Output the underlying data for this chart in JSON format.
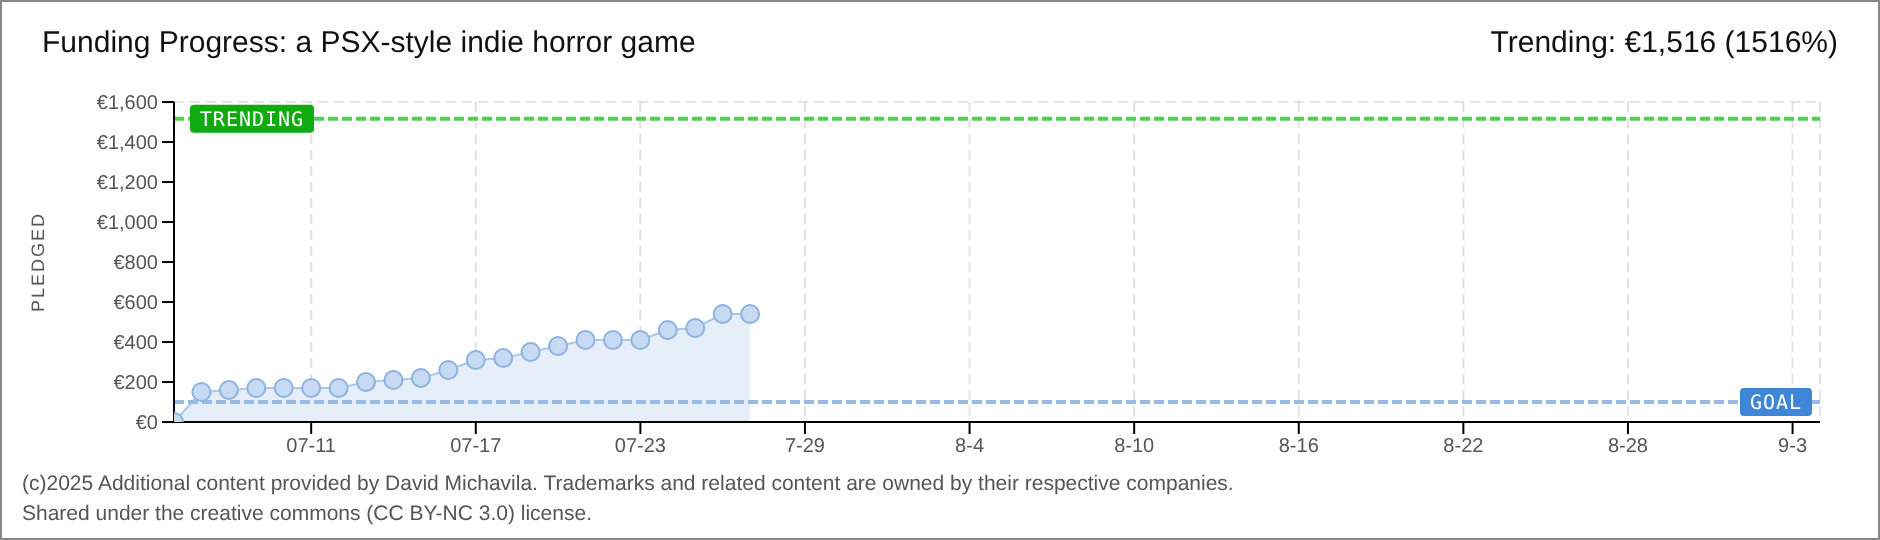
{
  "chart_data": {
    "type": "area",
    "title": "Funding Progress: a PSX-style indie horror game",
    "subtitle": "Trending: €1,516 (1516%)",
    "ylabel": "PLEDGED",
    "x": [
      "--07-06",
      "--07-07",
      "--07-08",
      "--07-09",
      "--07-10",
      "--07-11",
      "--07-12",
      "--07-13",
      "--07-14",
      "--07-15",
      "--07-16",
      "--07-17",
      "--07-18",
      "--07-19",
      "--07-20",
      "--07-21",
      "--07-22",
      "--07-23",
      "--07-24",
      "--07-25",
      "--07-26",
      "--07-27"
    ],
    "series": [
      {
        "color": "#a9c8ec",
        "values": [
          0,
          150,
          160,
          170,
          170,
          170,
          170,
          200,
          210,
          220,
          260,
          310,
          320,
          350,
          380,
          410,
          410,
          410,
          460,
          470,
          540,
          540
        ]
      }
    ],
    "xlim": [
      "--07-06",
      "--09-04"
    ],
    "xticks": [
      {
        "value": "--07-11",
        "label": "07-11"
      },
      {
        "value": "--07-17",
        "label": "07-17"
      },
      {
        "value": "--07-23",
        "label": "07-23"
      },
      {
        "value": "--07-29",
        "label": "7-29"
      },
      {
        "value": "--08-04",
        "label": "8-4"
      },
      {
        "value": "--08-10",
        "label": "8-10"
      },
      {
        "value": "--08-16",
        "label": "8-16"
      },
      {
        "value": "--08-22",
        "label": "8-22"
      },
      {
        "value": "--08-28",
        "label": "8-28"
      },
      {
        "value": "--09-03",
        "label": "9-3"
      }
    ],
    "ylim": [
      0,
      1600
    ],
    "yticks": [
      {
        "value": 0,
        "label": "€0"
      },
      {
        "value": 200,
        "label": "€200"
      },
      {
        "value": 400,
        "label": "€400"
      },
      {
        "value": 600,
        "label": "€600"
      },
      {
        "value": 800,
        "label": "€800"
      },
      {
        "value": 1000,
        "label": "€1,000"
      },
      {
        "value": 1200,
        "label": "€1,200"
      },
      {
        "value": 1400,
        "label": "€1,400"
      },
      {
        "value": 1600,
        "label": "€1,600"
      }
    ],
    "ref_lines": [
      {
        "axis": "y",
        "value": 1516,
        "label": "TRENDING",
        "color": "#55cc55",
        "line_style": "dashed"
      },
      {
        "axis": "y",
        "value": 100,
        "label": "GOAL",
        "color": "#99bbe3",
        "line_style": "dashed"
      }
    ],
    "annotations": [
      "(c)2025 Additional content provided by David Michavila. Trademarks and related content are owned by their respective companies.",
      "Shared under the creative commons (CC BY-NC 3.0) license."
    ],
    "grid": true,
    "legend": false,
    "marker": "circle"
  }
}
